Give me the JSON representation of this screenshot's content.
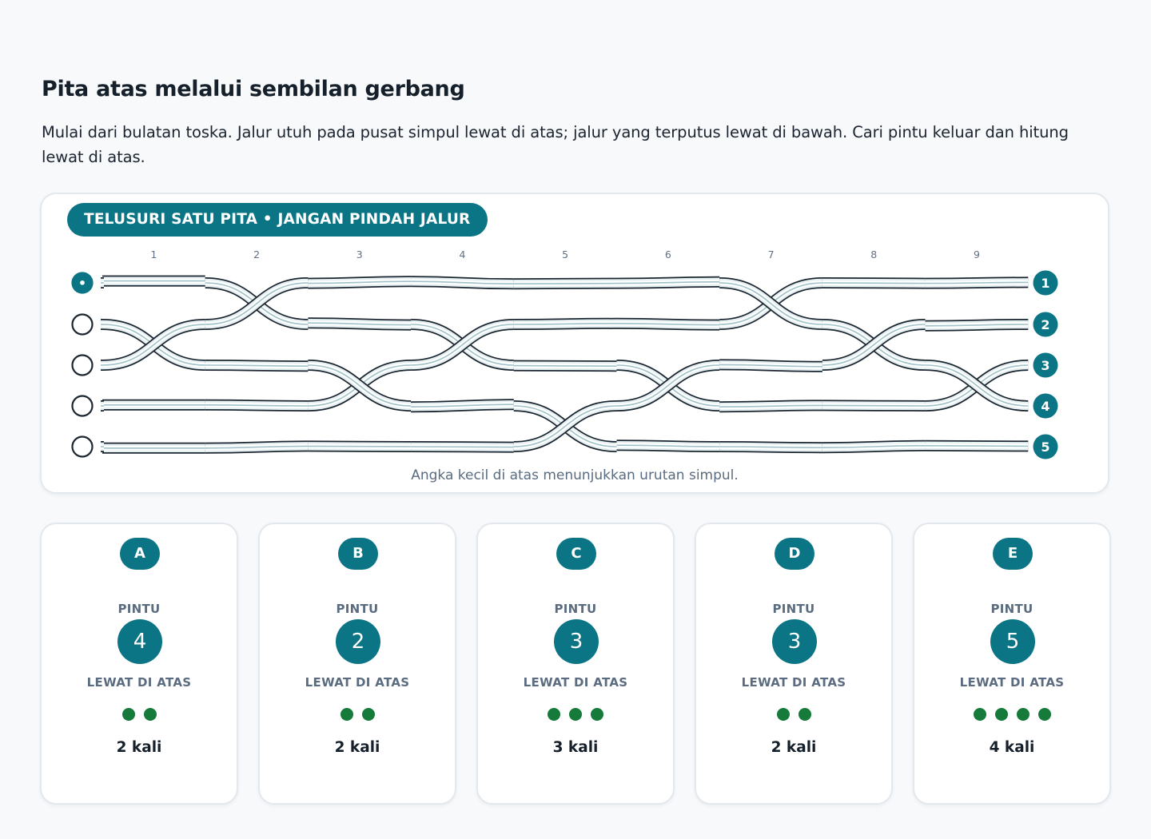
{
  "title": "Pita atas melalui sembilan gerbang",
  "instructions": "Mulai dari bulatan toska. Jalur utuh pada pusat simpul lewat di atas; jalur yang terputus lewat di bawah. Cari pintu keluar dan hitung lewat di atas.",
  "puzzle": {
    "badge": "TELUSURI SATU PITA • JANGAN PINDAH JALUR",
    "gate_labels": [
      "1",
      "2",
      "3",
      "4",
      "5",
      "6",
      "7",
      "8",
      "9"
    ],
    "start_marker": "•",
    "start_lane": 1,
    "lanes": 5,
    "exit_labels": [
      "1",
      "2",
      "3",
      "4",
      "5"
    ],
    "caption": "Angka kecil di atas menunjukkan urutan simpul.",
    "crossings": [
      {
        "gate": 1,
        "lanes": [
          2,
          3
        ],
        "over_from_lane": 3
      },
      {
        "gate": 2,
        "lanes": [
          1,
          2
        ],
        "over_from_lane": 2
      },
      {
        "gate": 3,
        "lanes": [
          3,
          4
        ],
        "over_from_lane": 3
      },
      {
        "gate": 4,
        "lanes": [
          2,
          3
        ],
        "over_from_lane": 3
      },
      {
        "gate": 5,
        "lanes": [
          4,
          5
        ],
        "over_from_lane": 5
      },
      {
        "gate": 6,
        "lanes": [
          3,
          4
        ],
        "over_from_lane": 4
      },
      {
        "gate": 7,
        "lanes": [
          1,
          2
        ],
        "over_from_lane": 1
      },
      {
        "gate": 8,
        "lanes": [
          2,
          3
        ],
        "over_from_lane": 3
      },
      {
        "gate": 9,
        "lanes": [
          3,
          4
        ],
        "over_from_lane": 3
      }
    ],
    "colors": {
      "accent": "#0b7585",
      "ribbon_edge": "#1c2630",
      "ribbon_fill": "#e6f0f2",
      "ribbon_center": "#9fc3c9"
    }
  },
  "options": [
    {
      "letter": "A",
      "door_label": "PINTU",
      "door": "4",
      "over_label": "LEWAT DI ATAS",
      "over_count": 2,
      "count_text": "2 kali"
    },
    {
      "letter": "B",
      "door_label": "PINTU",
      "door": "2",
      "over_label": "LEWAT DI ATAS",
      "over_count": 2,
      "count_text": "2 kali"
    },
    {
      "letter": "C",
      "door_label": "PINTU",
      "door": "3",
      "over_label": "LEWAT DI ATAS",
      "over_count": 3,
      "count_text": "3 kali"
    },
    {
      "letter": "D",
      "door_label": "PINTU",
      "door": "3",
      "over_label": "LEWAT DI ATAS",
      "over_count": 2,
      "count_text": "2 kali"
    },
    {
      "letter": "E",
      "door_label": "PINTU",
      "door": "5",
      "over_label": "LEWAT DI ATAS",
      "over_count": 4,
      "count_text": "4 kali"
    }
  ],
  "dot_color": "#157a3a"
}
